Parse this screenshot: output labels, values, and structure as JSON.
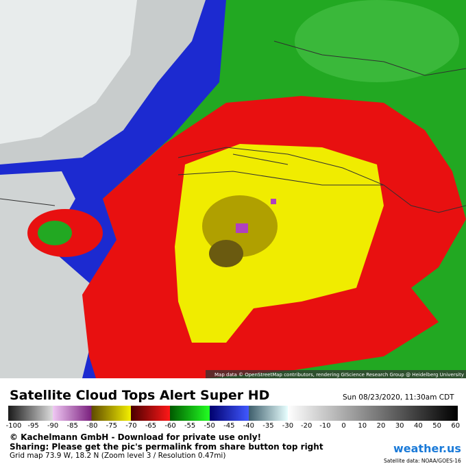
{
  "map": {
    "attribution": "Map data © OpenStreetMap contributors, rendering GIScience Research Group @ Heidelberg University"
  },
  "header": {
    "title": "Satellite Cloud Tops Alert Super HD",
    "date": "Sun 08/23/2020, 11:30am CDT"
  },
  "legend": {
    "ticks": [
      -100,
      -95,
      -90,
      -85,
      -80,
      -75,
      -70,
      -65,
      -60,
      -55,
      -50,
      -45,
      -40,
      -35,
      -30,
      -20,
      -10,
      0,
      10,
      20,
      30,
      40,
      50,
      60
    ]
  },
  "footer": {
    "copyright": "© Kachelmann GmbH - Download for private use only!",
    "sharing": "Sharing: Please get the pic's permalink from share button top right",
    "grid": "Grid map 73.9 W, 18.2 N (Zoom level 3 / Resolution 0.47mi)",
    "logo": "weather.us",
    "source": "Satellite data: NOAA/GOES-16"
  }
}
